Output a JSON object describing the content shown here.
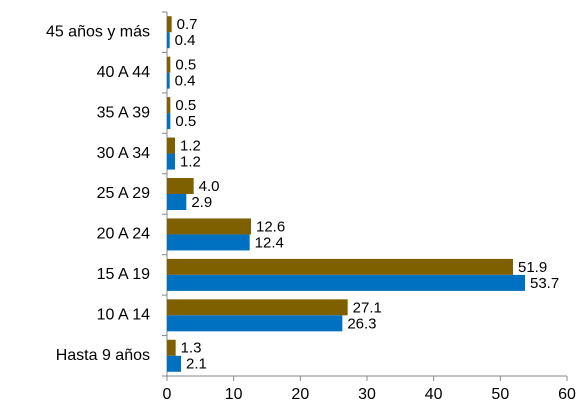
{
  "chart_data": {
    "type": "hbar",
    "categories": [
      "45 años y más",
      "40 A 44",
      "35 A 39",
      "30 A 34",
      "25 A 29",
      "20 A 24",
      "15 A 19",
      "10 A 14",
      "Hasta 9 años"
    ],
    "series": [
      {
        "color": "#7f6000",
        "values": [
          0.7,
          0.5,
          0.5,
          1.2,
          4.0,
          12.6,
          51.9,
          27.1,
          1.3
        ],
        "value_labels": [
          "0.7",
          "0.5",
          "0.5",
          "1.2",
          "4.0",
          "12.6",
          "51.9",
          "27.1",
          "1.3"
        ]
      },
      {
        "color": "#0070c0",
        "values": [
          0.4,
          0.4,
          0.5,
          1.2,
          2.9,
          12.4,
          53.7,
          26.3,
          2.1
        ],
        "value_labels": [
          "0.4",
          "0.4",
          "0.5",
          "1.2",
          "2.9",
          "12.4",
          "53.7",
          "26.3",
          "2.1"
        ]
      }
    ],
    "xlim": [
      0,
      60
    ],
    "xticks": [
      0,
      10,
      20,
      30,
      40,
      50,
      60
    ]
  }
}
